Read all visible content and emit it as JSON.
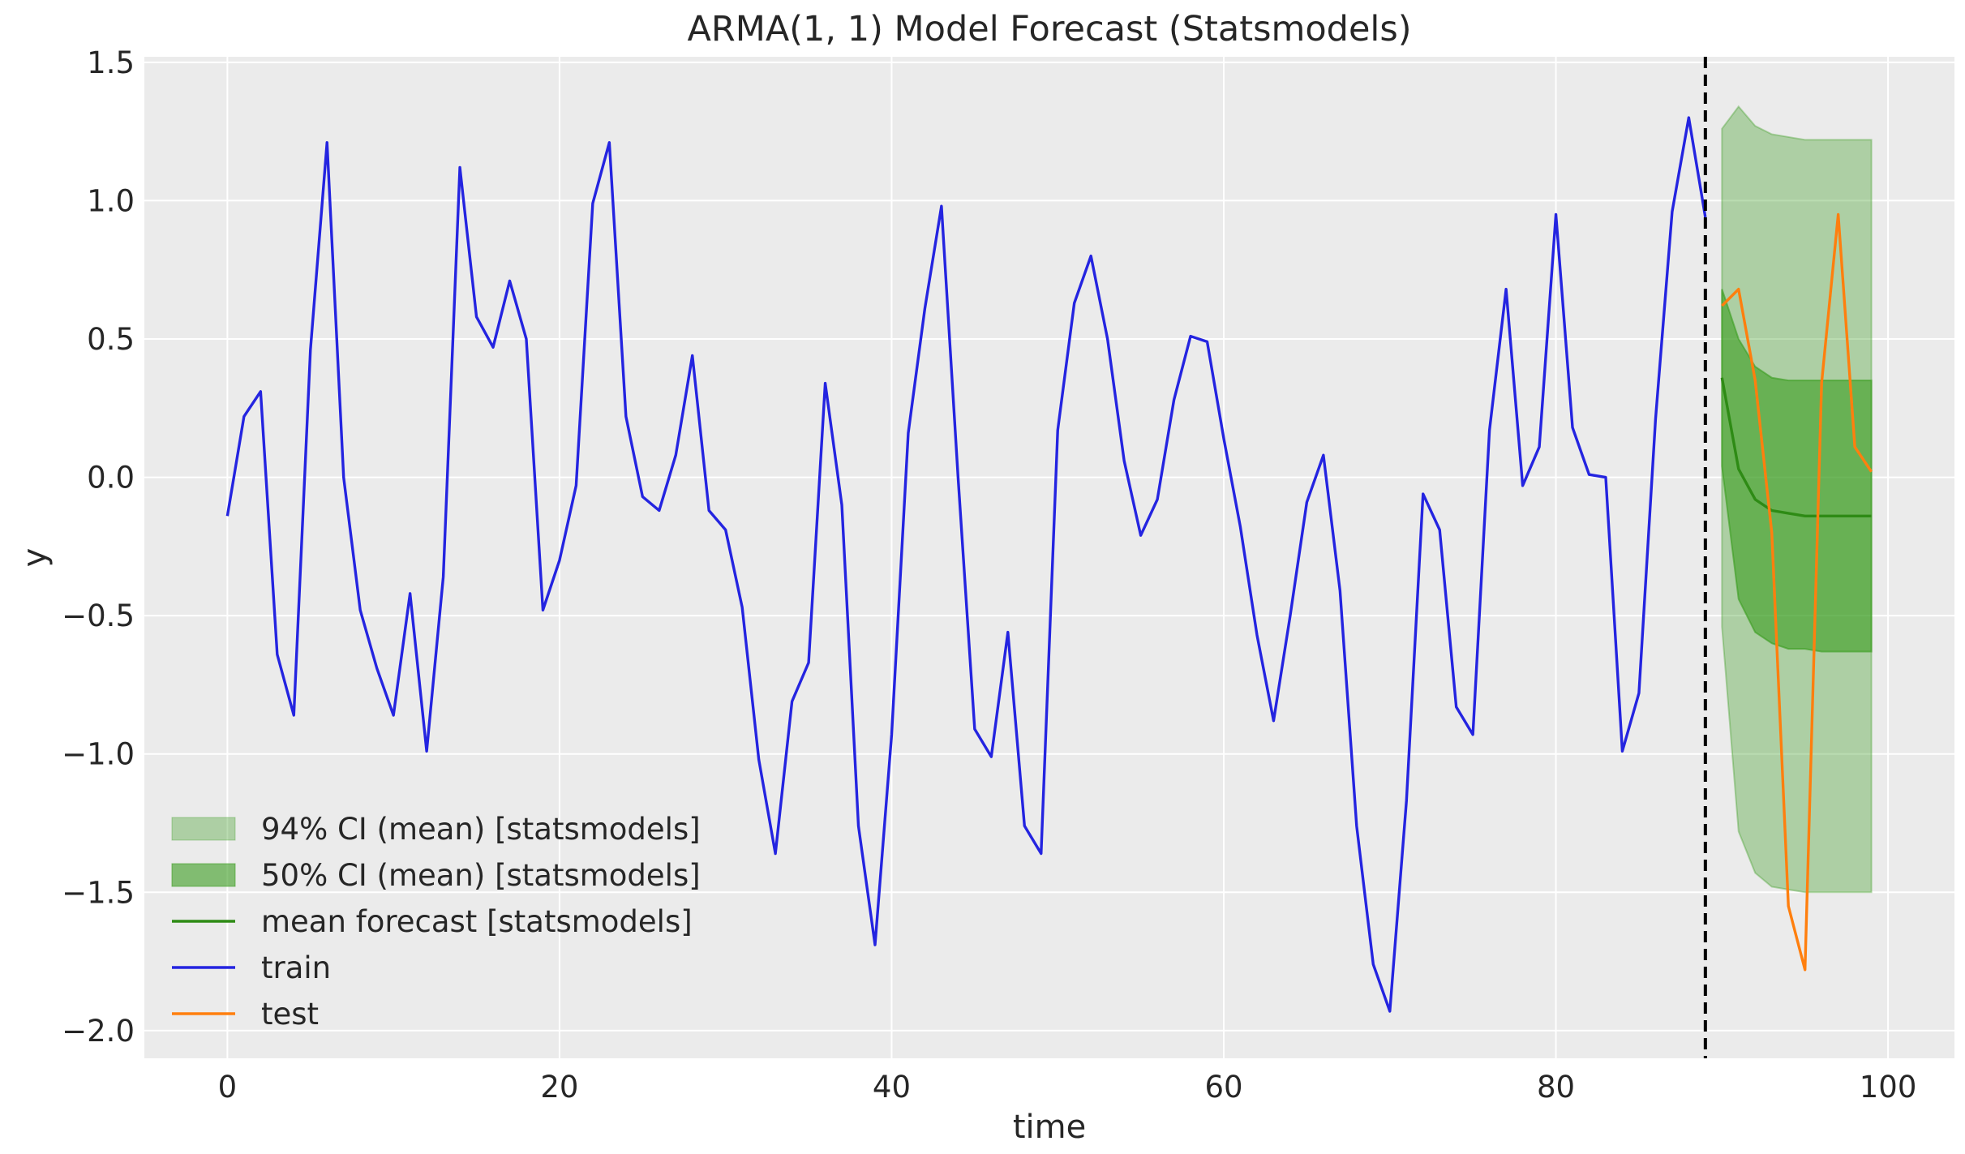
{
  "chart_data": {
    "type": "line",
    "title": "ARMA(1, 1) Model Forecast (Statsmodels)",
    "xlabel": "time",
    "ylabel": "y",
    "xlim": [
      -5,
      104
    ],
    "ylim": [
      -2.1,
      1.52
    ],
    "grid": true,
    "legend_position": "lower-left",
    "x_ticks": [
      0,
      20,
      40,
      60,
      80,
      100
    ],
    "x_tick_labels": [
      "0",
      "20",
      "40",
      "60",
      "80",
      "100"
    ],
    "y_ticks": [
      1.5,
      1.0,
      0.5,
      0.0,
      -0.5,
      -1.0,
      -1.5,
      -2.0
    ],
    "y_tick_labels": [
      "1.5",
      "1.0",
      "0.5",
      "0.0",
      "−0.5",
      "−1.0",
      "−1.5",
      "−2.0"
    ],
    "split_line": {
      "x": 89,
      "color": "#000000",
      "style": "dashed"
    },
    "series": [
      {
        "name": "train",
        "kind": "line",
        "color": "#2424e0",
        "x_start": 0,
        "values": [
          -0.14,
          0.22,
          0.31,
          -0.64,
          -0.86,
          0.46,
          1.21,
          0.0,
          -0.48,
          -0.69,
          -0.86,
          -0.42,
          -0.99,
          -0.36,
          1.12,
          0.58,
          0.47,
          0.71,
          0.5,
          -0.48,
          -0.3,
          -0.03,
          0.99,
          1.21,
          0.22,
          -0.07,
          -0.12,
          0.08,
          0.44,
          -0.12,
          -0.19,
          -0.47,
          -1.02,
          -1.36,
          -0.81,
          -0.67,
          0.34,
          -0.1,
          -1.26,
          -1.69,
          -0.93,
          0.16,
          0.61,
          0.98,
          0.0,
          -0.91,
          -1.01,
          -0.56,
          -1.26,
          -1.36,
          0.17,
          0.63,
          0.8,
          0.5,
          0.06,
          -0.21,
          -0.08,
          0.28,
          0.51,
          0.49,
          0.14,
          -0.18,
          -0.57,
          -0.88,
          -0.5,
          -0.09,
          0.08,
          -0.41,
          -1.26,
          -1.76,
          -1.93,
          -1.17,
          -0.06,
          -0.19,
          -0.83,
          -0.93,
          0.17,
          0.68,
          -0.03,
          0.11,
          0.95,
          0.18,
          0.01,
          0.0,
          -0.99,
          -0.78,
          0.21,
          0.96,
          1.3,
          0.94
        ]
      },
      {
        "name": "test",
        "kind": "line",
        "color": "#ff7f0e",
        "x_start": 90,
        "values": [
          0.62,
          0.68,
          0.35,
          -0.2,
          -1.55,
          -1.78,
          0.34,
          0.95,
          0.11,
          0.02
        ]
      },
      {
        "name": "mean forecast [statsmodels]",
        "kind": "line",
        "color": "#2e8b15",
        "x_start": 90,
        "values": [
          0.36,
          0.03,
          -0.08,
          -0.12,
          -0.13,
          -0.14,
          -0.14,
          -0.14,
          -0.14,
          -0.14
        ]
      },
      {
        "name": "94% CI (mean) [statsmodels]",
        "kind": "band",
        "color": "#3a9c1f",
        "opacity": 0.35,
        "x_start": 90,
        "upper": [
          1.26,
          1.34,
          1.27,
          1.24,
          1.23,
          1.22,
          1.22,
          1.22,
          1.22,
          1.22
        ],
        "lower": [
          -0.54,
          -1.28,
          -1.43,
          -1.48,
          -1.49,
          -1.5,
          -1.5,
          -1.5,
          -1.5,
          -1.5
        ]
      },
      {
        "name": "50% CI (mean) [statsmodels]",
        "kind": "band",
        "color": "#3a9c1f",
        "opacity": 0.6,
        "x_start": 90,
        "upper": [
          0.68,
          0.5,
          0.4,
          0.36,
          0.35,
          0.35,
          0.35,
          0.35,
          0.35,
          0.35
        ],
        "lower": [
          0.04,
          -0.44,
          -0.56,
          -0.6,
          -0.62,
          -0.62,
          -0.63,
          -0.63,
          -0.63,
          -0.63
        ]
      }
    ],
    "legend": [
      {
        "label": "94% CI (mean) [statsmodels]",
        "kind": "patch",
        "color": "#3a9c1f",
        "opacity": 0.35
      },
      {
        "label": "50% CI (mean) [statsmodels]",
        "kind": "patch",
        "color": "#3a9c1f",
        "opacity": 0.6
      },
      {
        "label": "mean forecast [statsmodels]",
        "kind": "line",
        "color": "#2e8b15"
      },
      {
        "label": "train",
        "kind": "line",
        "color": "#2424e0"
      },
      {
        "label": "test",
        "kind": "line",
        "color": "#ff7f0e"
      }
    ],
    "colors": {
      "plot_background": "#ebebeb",
      "grid": "#ffffff"
    }
  }
}
